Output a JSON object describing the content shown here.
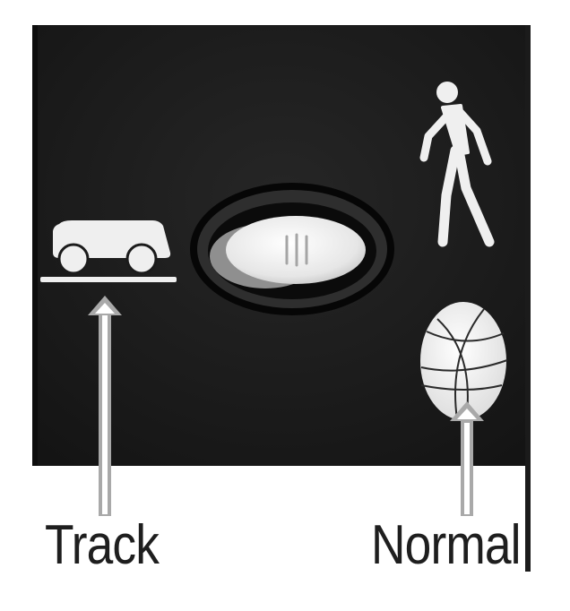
{
  "labels": {
    "track": "Track",
    "normal": "Normal"
  },
  "switch": {
    "position": "left"
  },
  "icons": {
    "left_mode": "cart-on-track-icon",
    "right_top": "walking-person-icon",
    "right_bottom": "basketball-icon"
  },
  "colors": {
    "panel": "#1b1b1b",
    "panel_border": "#0d0d0d",
    "background": "#ffffff",
    "icon": "#efefef",
    "arrow": "#a9a9a9",
    "label_text": "#1e1e1e"
  }
}
